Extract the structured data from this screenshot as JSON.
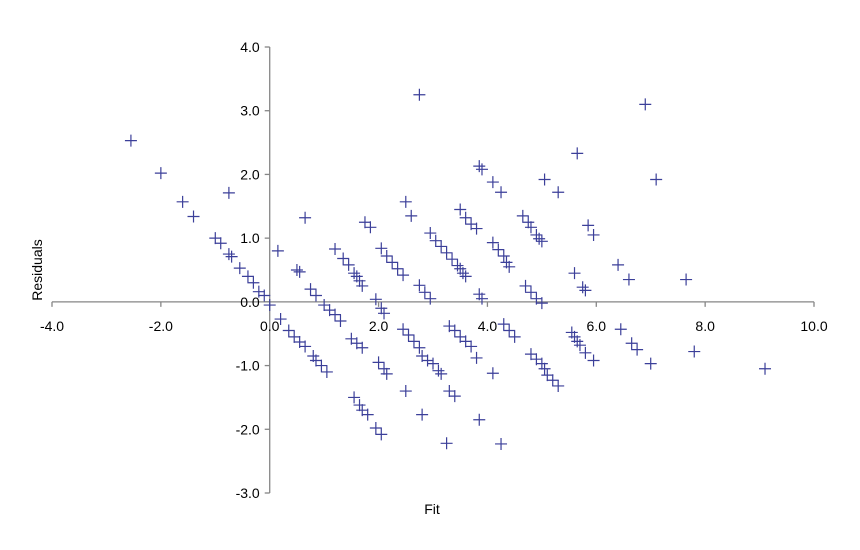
{
  "chart_data": {
    "type": "scatter",
    "title": "",
    "xlabel": "Fit",
    "ylabel": "Residuals",
    "xlim": [
      -4.0,
      10.0
    ],
    "ylim": [
      -3.0,
      4.0
    ],
    "x_ticks": [
      "-4.0",
      "-2.0",
      "0.0",
      "2.0",
      "4.0",
      "6.0",
      "8.0",
      "10.0"
    ],
    "y_ticks": [
      "4.0",
      "3.0",
      "2.0",
      "1.0",
      "0.0",
      "-1.0",
      "-2.0",
      "-3.0"
    ],
    "grid": false,
    "legend": "none",
    "marker": "plus",
    "marker_color": "#3b3f99",
    "axis_color": "#868686",
    "series": [
      {
        "points": [
          [
            -2.55,
            2.53
          ],
          [
            -2.0,
            2.02
          ],
          [
            -1.6,
            1.57
          ],
          [
            -1.4,
            1.34
          ],
          [
            -0.75,
            1.71
          ],
          [
            -1.0,
            1.0
          ],
          [
            -0.9,
            0.92
          ],
          [
            -0.75,
            0.75
          ],
          [
            -0.7,
            0.71
          ],
          [
            -0.55,
            0.53
          ],
          [
            -0.4,
            0.4
          ],
          [
            -0.3,
            0.3
          ],
          [
            -0.2,
            0.16
          ],
          [
            -0.1,
            0.1
          ],
          [
            0.0,
            -0.05
          ],
          [
            0.15,
            0.8
          ],
          [
            0.5,
            0.5
          ],
          [
            0.55,
            0.47
          ],
          [
            0.65,
            1.32
          ],
          [
            0.2,
            -0.27
          ],
          [
            0.35,
            -0.45
          ],
          [
            0.45,
            -0.55
          ],
          [
            0.55,
            -0.63
          ],
          [
            0.65,
            -0.7
          ],
          [
            0.8,
            -0.85
          ],
          [
            0.85,
            -0.92
          ],
          [
            0.95,
            -1.0
          ],
          [
            1.05,
            -1.1
          ],
          [
            0.75,
            0.2
          ],
          [
            0.85,
            0.1
          ],
          [
            1.0,
            -0.05
          ],
          [
            1.1,
            -0.13
          ],
          [
            1.2,
            -0.2
          ],
          [
            1.3,
            -0.3
          ],
          [
            1.2,
            0.83
          ],
          [
            1.35,
            0.68
          ],
          [
            1.45,
            0.58
          ],
          [
            1.55,
            0.45
          ],
          [
            1.6,
            0.4
          ],
          [
            1.65,
            0.33
          ],
          [
            1.7,
            0.25
          ],
          [
            1.5,
            -0.58
          ],
          [
            1.6,
            -0.65
          ],
          [
            1.7,
            -0.72
          ],
          [
            1.75,
            1.25
          ],
          [
            1.85,
            1.17
          ],
          [
            1.55,
            -1.5
          ],
          [
            1.65,
            -1.62
          ],
          [
            1.7,
            -1.7
          ],
          [
            1.8,
            -1.77
          ],
          [
            1.95,
            -1.98
          ],
          [
            2.05,
            -2.08
          ],
          [
            1.95,
            0.04
          ],
          [
            2.05,
            -0.1
          ],
          [
            2.1,
            -0.18
          ],
          [
            2.0,
            -0.95
          ],
          [
            2.1,
            -1.05
          ],
          [
            2.15,
            -1.13
          ],
          [
            2.05,
            0.84
          ],
          [
            2.15,
            0.72
          ],
          [
            2.25,
            0.62
          ],
          [
            2.35,
            0.52
          ],
          [
            2.45,
            0.42
          ],
          [
            2.5,
            1.57
          ],
          [
            2.6,
            1.35
          ],
          [
            2.45,
            -0.43
          ],
          [
            2.55,
            -0.52
          ],
          [
            2.65,
            -0.62
          ],
          [
            2.75,
            -0.72
          ],
          [
            2.75,
            3.25
          ],
          [
            2.75,
            0.26
          ],
          [
            2.85,
            0.15
          ],
          [
            2.95,
            0.05
          ],
          [
            2.5,
            -1.4
          ],
          [
            2.8,
            -1.77
          ],
          [
            2.8,
            -0.85
          ],
          [
            2.9,
            -0.92
          ],
          [
            3.0,
            -0.97
          ],
          [
            3.1,
            -1.08
          ],
          [
            3.15,
            -1.13
          ],
          [
            2.95,
            1.08
          ],
          [
            3.05,
            0.96
          ],
          [
            3.15,
            0.87
          ],
          [
            3.25,
            0.77
          ],
          [
            3.35,
            0.67
          ],
          [
            3.45,
            0.57
          ],
          [
            3.5,
            0.52
          ],
          [
            3.55,
            0.45
          ],
          [
            3.6,
            0.4
          ],
          [
            3.3,
            -0.38
          ],
          [
            3.4,
            -0.45
          ],
          [
            3.5,
            -0.55
          ],
          [
            3.6,
            -0.62
          ],
          [
            3.7,
            -0.7
          ],
          [
            3.3,
            -1.4
          ],
          [
            3.4,
            -1.48
          ],
          [
            3.25,
            -2.22
          ],
          [
            3.5,
            1.45
          ],
          [
            3.6,
            1.32
          ],
          [
            3.7,
            1.22
          ],
          [
            3.8,
            1.15
          ],
          [
            3.85,
            2.13
          ],
          [
            3.9,
            2.08
          ],
          [
            3.85,
            0.12
          ],
          [
            3.9,
            0.05
          ],
          [
            3.8,
            -0.88
          ],
          [
            3.85,
            -1.85
          ],
          [
            4.1,
            1.88
          ],
          [
            4.25,
            1.72
          ],
          [
            4.1,
            0.93
          ],
          [
            4.2,
            0.82
          ],
          [
            4.3,
            0.72
          ],
          [
            4.35,
            0.62
          ],
          [
            4.4,
            0.55
          ],
          [
            4.1,
            -1.12
          ],
          [
            4.25,
            -2.23
          ],
          [
            4.3,
            -0.35
          ],
          [
            4.4,
            -0.45
          ],
          [
            4.5,
            -0.55
          ],
          [
            4.65,
            1.35
          ],
          [
            4.75,
            1.25
          ],
          [
            4.8,
            1.17
          ],
          [
            4.9,
            1.05
          ],
          [
            4.95,
            0.99
          ],
          [
            5.0,
            0.95
          ],
          [
            4.7,
            0.25
          ],
          [
            4.8,
            0.15
          ],
          [
            4.9,
            0.05
          ],
          [
            5.0,
            -0.02
          ],
          [
            4.8,
            -0.82
          ],
          [
            4.9,
            -0.9
          ],
          [
            5.0,
            -0.97
          ],
          [
            5.05,
            -1.05
          ],
          [
            5.1,
            -1.15
          ],
          [
            5.2,
            -1.23
          ],
          [
            5.3,
            -1.32
          ],
          [
            5.05,
            1.92
          ],
          [
            5.3,
            1.72
          ],
          [
            5.6,
            0.45
          ],
          [
            5.65,
            2.33
          ],
          [
            5.55,
            -0.48
          ],
          [
            5.6,
            -0.55
          ],
          [
            5.65,
            -0.62
          ],
          [
            5.7,
            -0.68
          ],
          [
            5.8,
            -0.8
          ],
          [
            5.75,
            0.23
          ],
          [
            5.85,
            1.2
          ],
          [
            5.95,
            1.05
          ],
          [
            5.95,
            -0.92
          ],
          [
            5.8,
            0.18
          ],
          [
            6.4,
            0.58
          ],
          [
            6.45,
            -0.43
          ],
          [
            6.6,
            0.35
          ],
          [
            6.65,
            -0.65
          ],
          [
            6.75,
            -0.75
          ],
          [
            6.9,
            3.1
          ],
          [
            7.0,
            -0.97
          ],
          [
            7.1,
            1.92
          ],
          [
            7.65,
            0.35
          ],
          [
            7.8,
            -0.78
          ],
          [
            9.1,
            -1.05
          ]
        ]
      }
    ]
  }
}
